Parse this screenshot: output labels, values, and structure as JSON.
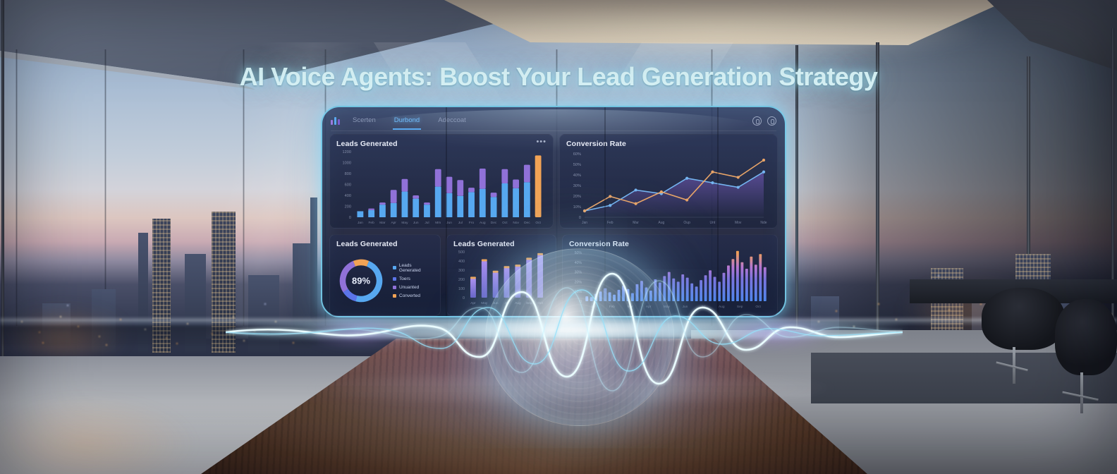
{
  "headline": "AI Voice Agents: Boost Your Lead Generation Strategy",
  "palette": {
    "accent_cyan": "#7fdcff",
    "headline_text": "#d6f1f5",
    "bar_blue": "#57a8f0",
    "bar_purple": "#9071d8",
    "bar_orange": "#f2a355",
    "line_blue": "#74b4f0",
    "line_orange": "#e8a468",
    "tab_active": "#6fb9f7"
  },
  "dashboard": {
    "nav": {
      "tabs": [
        {
          "label": "Scerten",
          "active": false
        },
        {
          "label": "Durbond",
          "active": true
        },
        {
          "label": "Adeccoat",
          "active": false
        }
      ],
      "more_icon": "•••"
    },
    "icons": {
      "logo": "bar-chart",
      "right": [
        "user",
        "clock"
      ]
    }
  },
  "chart_data": [
    {
      "id": "leads-monthly",
      "type": "bar",
      "stacked": true,
      "title": "Leads Generated",
      "categories": [
        "Jan",
        "Feb",
        "Mar",
        "Apr",
        "May",
        "Jun",
        "Jul",
        "Mm",
        "Jun",
        "Jul",
        "Fro",
        "Aug",
        "Dec",
        "Oct",
        "Nov",
        "Dec",
        "Oct"
      ],
      "series": [
        {
          "name": "base",
          "color": "#57a8f0",
          "values": [
            110,
            130,
            230,
            260,
            470,
            340,
            230,
            560,
            440,
            390,
            460,
            520,
            370,
            620,
            530,
            640,
            0
          ]
        },
        {
          "name": "top",
          "color": "#9071d8",
          "values": [
            0,
            30,
            40,
            240,
            230,
            60,
            40,
            320,
            300,
            290,
            80,
            370,
            80,
            260,
            160,
            320,
            0
          ]
        },
        {
          "name": "highlight",
          "color": "#f2a355",
          "values": [
            0,
            0,
            0,
            0,
            0,
            0,
            0,
            0,
            0,
            0,
            0,
            0,
            0,
            0,
            0,
            0,
            1130
          ]
        }
      ],
      "ylim": [
        0,
        1200
      ],
      "yticks": [
        "1200",
        "1000",
        "800",
        "600",
        "400",
        "200",
        "0"
      ]
    },
    {
      "id": "conversion-trend",
      "type": "line",
      "title": "Conversion Rate",
      "categories": [
        "Jan",
        "Feb",
        "Mar",
        "Aug",
        "Oup",
        "Unt",
        "Mov",
        "Nde"
      ],
      "series": [
        {
          "name": "blue",
          "color": "#74b4f0",
          "values": [
            7,
            13,
            30,
            26,
            43,
            38,
            33,
            50
          ]
        },
        {
          "name": "orange",
          "color": "#e8a468",
          "values": [
            7,
            23,
            15,
            28,
            19,
            50,
            44,
            63
          ]
        }
      ],
      "ylim": [
        0,
        70
      ],
      "yticks": [
        "60%",
        "50%",
        "40%",
        "30%",
        "20%",
        "10%",
        "0"
      ]
    },
    {
      "id": "leads-share",
      "type": "pie",
      "title": "Leads Generated",
      "center_label": "89%",
      "values": [
        48,
        12,
        28,
        12
      ],
      "colors": [
        "#57a8f0",
        "#5b74e8",
        "#9071d8",
        "#f2a355"
      ],
      "legend": [
        {
          "label": "Leads Generated"
        },
        {
          "label": "Toers"
        },
        {
          "label": "Unuanted"
        },
        {
          "label": "Converted"
        }
      ]
    },
    {
      "id": "leads-weekly",
      "type": "bar",
      "title": "Leads Generated",
      "categories": [
        "Apr",
        "May",
        "Jun",
        "Jul",
        "Aug",
        "Sep",
        "Oct"
      ],
      "values": [
        250,
        480,
        330,
        390,
        410,
        500,
        560
      ],
      "cap_color": "#f2a355",
      "bar_color_top": "#ae8cf0",
      "bar_color_bottom": "#6257c2",
      "ylim": [
        0,
        600
      ],
      "yticks": [
        "500",
        "400",
        "300",
        "200",
        "100",
        "0"
      ]
    },
    {
      "id": "conversion-daily",
      "type": "bar",
      "title": "Conversion Rate",
      "categories": [
        "Jan",
        "Feb",
        "Mar",
        "Apr",
        "May",
        "Jun",
        "Jul",
        "Aug",
        "Sep",
        "Oct"
      ],
      "values": [
        6,
        5,
        9,
        12,
        16,
        11,
        8,
        14,
        19,
        15,
        10,
        21,
        25,
        17,
        13,
        27,
        23,
        31,
        36,
        28,
        24,
        33,
        29,
        22,
        18,
        26,
        32,
        38,
        30,
        24,
        35,
        44,
        52,
        62,
        48,
        40,
        55,
        45,
        58,
        42
      ],
      "ylim": [
        0,
        60
      ],
      "yticks": [
        "50%",
        "40%",
        "30%",
        "20%",
        "10%",
        "0"
      ]
    }
  ]
}
